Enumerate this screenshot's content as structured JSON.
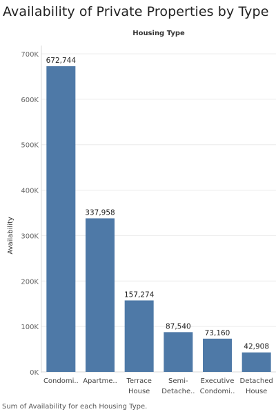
{
  "title": "Availability of Private Properties by Type",
  "caption": "Sum of Availability for each Housing Type.",
  "chart_data": {
    "type": "bar",
    "header": "Housing Type",
    "ylabel": "Availability",
    "xlabel": "",
    "categories": [
      [
        "Condomi.."
      ],
      [
        "Apartme.."
      ],
      [
        "Terrace",
        "House"
      ],
      [
        "Semi-",
        "Detache.."
      ],
      [
        "Executive",
        "Condomi.."
      ],
      [
        "Detached",
        "House"
      ]
    ],
    "values": [
      672744,
      337958,
      157274,
      87540,
      73160,
      42908
    ],
    "value_labels": [
      "672,744",
      "337,958",
      "157,274",
      "87,540",
      "73,160",
      "42,908"
    ],
    "yticks": [
      0,
      100000,
      200000,
      300000,
      400000,
      500000,
      600000,
      700000
    ],
    "ytick_labels": [
      "0K",
      "100K",
      "200K",
      "300K",
      "400K",
      "500K",
      "600K",
      "700K"
    ],
    "ylim": [
      0,
      720000
    ],
    "bar_color": "#4e79a7",
    "grid": true
  }
}
